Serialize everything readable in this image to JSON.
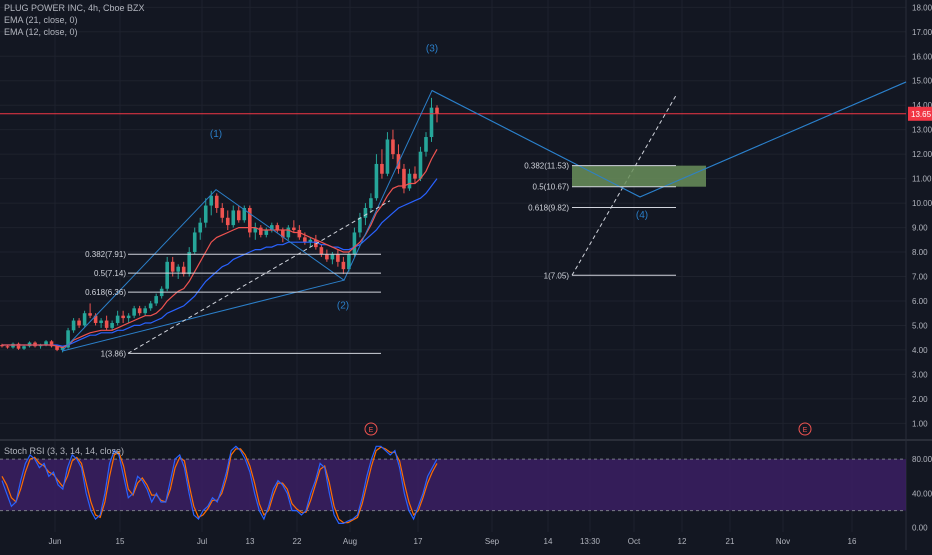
{
  "header": {
    "symbol_line": "PLUG POWER INC, 4h, Cboe BZX",
    "ema1": "EMA (21, close, 0)",
    "ema2": "EMA (12, close, 0)",
    "rsi_label": "Stoch RSI (3, 3, 14, 14, close)"
  },
  "colors": {
    "background": "#131722",
    "grid": "#1e222d",
    "up": "#26a69a",
    "down": "#ef5350",
    "ema21": "#2962ff",
    "ema12": "#ef5350",
    "wave_line": "#2b7fc9",
    "hline": "#f23645",
    "fib_box_fill": "#6a8f5a",
    "rsi_band": "#3b1f63",
    "rsi_k": "#2962ff",
    "rsi_d": "#ff6d00",
    "axis_text": "#b2b5be"
  },
  "chart_data": [
    {
      "type": "candlestick",
      "symbol": "PLUG POWER INC",
      "timeframe": "4h",
      "exchange": "Cboe BZX",
      "ylim": [
        0.4,
        18.3
      ],
      "y_ticks": [
        "1.00",
        "2.00",
        "3.00",
        "4.00",
        "5.00",
        "6.00",
        "7.00",
        "8.00",
        "9.00",
        "10.00",
        "11.00",
        "12.00",
        "13.00",
        "14.00",
        "15.00",
        "16.00",
        "17.00",
        "18.00"
      ],
      "y_tick_values": [
        1,
        2,
        3,
        4,
        5,
        6,
        7,
        8,
        9,
        10,
        11,
        12,
        13,
        14,
        15,
        16,
        17,
        18
      ],
      "last_price_label": "13.65",
      "last_price": 13.65,
      "x_ticks": [
        "Jun",
        "15",
        "Jul",
        "13",
        "22",
        "Aug",
        "17",
        "Sep",
        "14",
        "13:30",
        "Oct",
        "12",
        "21",
        "Nov",
        "16"
      ],
      "candles": [
        [
          4.2,
          4.25,
          4.1,
          4.15
        ],
        [
          4.15,
          4.2,
          4.05,
          4.1
        ],
        [
          4.1,
          4.3,
          4.05,
          4.25
        ],
        [
          4.25,
          4.3,
          4.0,
          4.05
        ],
        [
          4.05,
          4.2,
          4.0,
          4.15
        ],
        [
          4.15,
          4.35,
          4.1,
          4.3
        ],
        [
          4.3,
          4.35,
          4.1,
          4.15
        ],
        [
          4.15,
          4.25,
          4.05,
          4.2
        ],
        [
          4.2,
          4.4,
          4.15,
          4.35
        ],
        [
          4.35,
          4.4,
          4.1,
          4.15
        ],
        [
          4.15,
          4.2,
          3.95,
          4.0
        ],
        [
          4.0,
          4.15,
          3.9,
          4.1
        ],
        [
          4.1,
          4.9,
          4.05,
          4.8
        ],
        [
          4.8,
          5.3,
          4.7,
          5.2
        ],
        [
          5.2,
          5.3,
          4.9,
          5.0
        ],
        [
          5.0,
          5.6,
          4.95,
          5.5
        ],
        [
          5.5,
          5.9,
          5.3,
          5.4
        ],
        [
          5.4,
          5.5,
          5.0,
          5.1
        ],
        [
          5.1,
          5.3,
          4.9,
          5.2
        ],
        [
          5.2,
          5.4,
          4.8,
          4.9
        ],
        [
          4.9,
          5.2,
          4.8,
          5.1
        ],
        [
          5.1,
          5.6,
          5.0,
          5.4
        ],
        [
          5.4,
          5.6,
          5.1,
          5.3
        ],
        [
          5.3,
          5.5,
          5.1,
          5.4
        ],
        [
          5.4,
          5.8,
          5.3,
          5.7
        ],
        [
          5.7,
          5.8,
          5.4,
          5.5
        ],
        [
          5.5,
          5.8,
          5.4,
          5.7
        ],
        [
          5.7,
          6.0,
          5.6,
          5.9
        ],
        [
          5.9,
          6.3,
          5.8,
          6.2
        ],
        [
          6.2,
          6.6,
          6.1,
          6.5
        ],
        [
          6.5,
          7.8,
          6.4,
          7.6
        ],
        [
          7.6,
          7.8,
          7.0,
          7.2
        ],
        [
          7.2,
          7.5,
          6.9,
          7.4
        ],
        [
          7.4,
          7.6,
          7.0,
          7.1
        ],
        [
          7.1,
          8.2,
          7.0,
          8.0
        ],
        [
          8.0,
          9.0,
          7.9,
          8.8
        ],
        [
          8.8,
          9.4,
          8.5,
          9.2
        ],
        [
          9.2,
          10.2,
          9.0,
          9.9
        ],
        [
          9.9,
          10.5,
          9.5,
          10.3
        ],
        [
          10.3,
          10.4,
          9.6,
          9.8
        ],
        [
          9.8,
          10.0,
          9.2,
          9.4
        ],
        [
          9.4,
          9.7,
          8.9,
          9.1
        ],
        [
          9.1,
          9.9,
          9.0,
          9.7
        ],
        [
          9.7,
          9.9,
          9.2,
          9.3
        ],
        [
          9.3,
          9.9,
          9.2,
          9.8
        ],
        [
          9.8,
          9.9,
          8.6,
          8.8
        ],
        [
          8.8,
          9.2,
          8.5,
          9.0
        ],
        [
          9.0,
          9.1,
          8.6,
          8.7
        ],
        [
          8.7,
          9.0,
          8.6,
          8.9
        ],
        [
          8.9,
          9.2,
          8.8,
          9.1
        ],
        [
          9.1,
          9.2,
          8.8,
          8.9
        ],
        [
          8.9,
          9.0,
          8.4,
          8.6
        ],
        [
          8.6,
          9.1,
          8.5,
          9.0
        ],
        [
          9.0,
          9.3,
          8.8,
          8.9
        ],
        [
          8.9,
          9.1,
          8.5,
          8.6
        ],
        [
          8.6,
          8.8,
          8.3,
          8.4
        ],
        [
          8.4,
          8.6,
          8.2,
          8.5
        ],
        [
          8.5,
          8.7,
          8.1,
          8.2
        ],
        [
          8.2,
          8.3,
          7.8,
          7.9
        ],
        [
          7.9,
          8.1,
          7.6,
          7.7
        ],
        [
          7.7,
          8.0,
          7.5,
          7.9
        ],
        [
          7.9,
          8.1,
          7.4,
          7.6
        ],
        [
          7.6,
          7.8,
          7.1,
          7.3
        ],
        [
          7.3,
          8.0,
          7.2,
          7.9
        ],
        [
          7.9,
          9.0,
          7.8,
          8.8
        ],
        [
          8.8,
          9.6,
          8.6,
          9.4
        ],
        [
          9.4,
          10.0,
          9.1,
          9.8
        ],
        [
          9.8,
          10.4,
          9.6,
          10.2
        ],
        [
          10.2,
          12.0,
          10.1,
          11.6
        ],
        [
          11.6,
          12.2,
          11.0,
          11.2
        ],
        [
          11.2,
          12.9,
          11.1,
          12.6
        ],
        [
          12.6,
          13.0,
          11.8,
          12.0
        ],
        [
          12.0,
          12.4,
          11.2,
          11.4
        ],
        [
          11.4,
          11.6,
          10.4,
          10.6
        ],
        [
          10.6,
          11.4,
          10.5,
          11.2
        ],
        [
          11.2,
          11.5,
          10.8,
          11.0
        ],
        [
          11.0,
          12.3,
          10.9,
          12.1
        ],
        [
          12.1,
          12.9,
          11.9,
          12.7
        ],
        [
          12.7,
          14.3,
          12.5,
          13.9
        ],
        [
          13.9,
          14.0,
          13.3,
          13.65
        ]
      ],
      "ema21": [
        4.2,
        4.2,
        4.2,
        4.2,
        4.2,
        4.2,
        4.2,
        4.2,
        4.2,
        4.2,
        4.2,
        4.15,
        4.2,
        4.3,
        4.4,
        4.5,
        4.6,
        4.6,
        4.7,
        4.7,
        4.7,
        4.8,
        4.8,
        4.9,
        5.0,
        5.0,
        5.1,
        5.1,
        5.2,
        5.3,
        5.5,
        5.6,
        5.7,
        5.8,
        6.0,
        6.2,
        6.5,
        6.8,
        7.0,
        7.2,
        7.4,
        7.5,
        7.7,
        7.8,
        7.9,
        8.0,
        8.1,
        8.1,
        8.2,
        8.2,
        8.3,
        8.3,
        8.4,
        8.4,
        8.4,
        8.4,
        8.4,
        8.4,
        8.3,
        8.3,
        8.2,
        8.2,
        8.1,
        8.1,
        8.2,
        8.3,
        8.5,
        8.7,
        8.9,
        9.2,
        9.4,
        9.6,
        9.8,
        9.9,
        10.0,
        10.1,
        10.2,
        10.4,
        10.7,
        11.0
      ],
      "ema12": [
        4.2,
        4.2,
        4.2,
        4.2,
        4.2,
        4.2,
        4.2,
        4.2,
        4.2,
        4.2,
        4.15,
        4.1,
        4.2,
        4.4,
        4.5,
        4.6,
        4.7,
        4.75,
        4.8,
        4.8,
        4.8,
        4.9,
        5.0,
        5.1,
        5.2,
        5.3,
        5.4,
        5.4,
        5.5,
        5.7,
        6.0,
        6.2,
        6.4,
        6.5,
        6.8,
        7.2,
        7.6,
        8.0,
        8.4,
        8.6,
        8.7,
        8.8,
        8.9,
        9.0,
        9.0,
        9.0,
        9.0,
        8.9,
        8.9,
        8.9,
        8.9,
        8.9,
        8.9,
        8.8,
        8.8,
        8.7,
        8.6,
        8.5,
        8.4,
        8.3,
        8.2,
        8.1,
        8.0,
        8.0,
        8.2,
        8.4,
        8.7,
        9.1,
        9.6,
        9.9,
        10.3,
        10.6,
        10.7,
        10.7,
        10.8,
        10.8,
        11.0,
        11.3,
        11.8,
        12.2
      ],
      "wave_labels": [
        "(1)",
        "(2)",
        "(3)",
        "(4)"
      ],
      "fib_left": [
        {
          "label": "0.382(7.91)",
          "value": 7.91
        },
        {
          "label": "0.5(7.14)",
          "value": 7.14
        },
        {
          "label": "0.618(6.36)",
          "value": 6.36
        },
        {
          "label": "1(3.86)",
          "value": 3.86
        }
      ],
      "fib_right": [
        {
          "label": "0.382(11.53)",
          "value": 11.53
        },
        {
          "label": "0.5(10.67)",
          "value": 10.67
        },
        {
          "label": "0.618(9.82)",
          "value": 9.82
        },
        {
          "label": "1(7.05)",
          "value": 7.05
        }
      ],
      "event_markers": [
        "E",
        "E"
      ]
    },
    {
      "type": "line",
      "name": "Stoch RSI (3, 3, 14, 14, close)",
      "ylim": [
        -5,
        100
      ],
      "y_ticks": [
        "0.00",
        "40.00",
        "80.00"
      ],
      "y_tick_values": [
        0,
        40,
        80
      ],
      "band": [
        20,
        80
      ],
      "k": [
        55,
        40,
        25,
        30,
        55,
        75,
        85,
        80,
        70,
        75,
        60,
        65,
        50,
        45,
        70,
        85,
        80,
        70,
        40,
        20,
        10,
        15,
        40,
        75,
        90,
        85,
        60,
        35,
        40,
        60,
        55,
        45,
        30,
        40,
        30,
        30,
        55,
        80,
        85,
        70,
        40,
        15,
        10,
        20,
        25,
        35,
        30,
        45,
        65,
        90,
        95,
        90,
        80,
        65,
        40,
        20,
        10,
        25,
        45,
        55,
        50,
        40,
        20,
        20,
        15,
        20,
        40,
        55,
        75,
        70,
        40,
        15,
        5,
        5,
        8,
        10,
        15,
        35,
        60,
        80,
        95,
        95,
        90,
        85,
        90,
        70,
        40,
        20,
        10,
        25,
        40,
        60,
        70,
        80
      ],
      "d": [
        60,
        50,
        35,
        30,
        45,
        65,
        80,
        82,
        75,
        72,
        65,
        62,
        55,
        48,
        60,
        78,
        82,
        75,
        52,
        30,
        15,
        12,
        30,
        60,
        85,
        88,
        72,
        45,
        38,
        52,
        58,
        50,
        38,
        38,
        32,
        30,
        45,
        70,
        82,
        78,
        50,
        25,
        12,
        15,
        22,
        32,
        32,
        40,
        58,
        85,
        92,
        92,
        85,
        72,
        52,
        28,
        15,
        20,
        38,
        52,
        52,
        45,
        28,
        22,
        18,
        18,
        32,
        50,
        68,
        72,
        52,
        25,
        10,
        6,
        6,
        9,
        12,
        28,
        50,
        72,
        90,
        94,
        92,
        88,
        88,
        78,
        52,
        30,
        15,
        20,
        35,
        52,
        65,
        75
      ]
    }
  ]
}
